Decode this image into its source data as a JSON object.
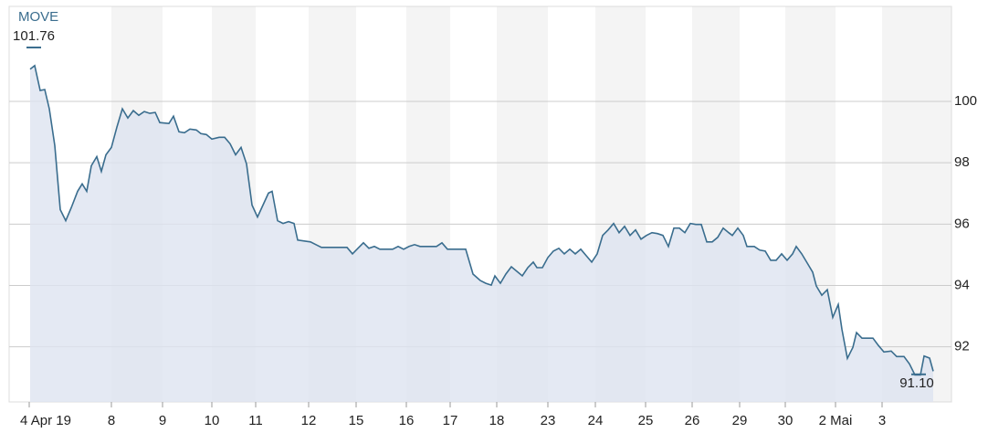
{
  "chart_data": {
    "type": "area",
    "title": "MOVE",
    "x": [
      0.1,
      0.6,
      1.2,
      1.7,
      2.2,
      2.8,
      3.4,
      4.0,
      4.6,
      5.3,
      5.8,
      6.3,
      6.8,
      7.4,
      7.9,
      8.4,
      9.0,
      9.6,
      10.2,
      10.8,
      11.4,
      12.0,
      12.6,
      13.2,
      13.8,
      14.3,
      15.3,
      15.8,
      16.4,
      17.0,
      17.6,
      18.3,
      18.8,
      19.4,
      20.0,
      20.8,
      21.4,
      22.0,
      22.6,
      23.2,
      23.8,
      24.4,
      25.0,
      25.6,
      26.2,
      26.6,
      27.2,
      27.8,
      28.4,
      29.0,
      29.4,
      30.8,
      31.4,
      32.0,
      34.8,
      35.4,
      36.0,
      36.6,
      37.2,
      37.8,
      38.4,
      39.8,
      40.4,
      41.0,
      41.6,
      42.2,
      42.8,
      44.6,
      45.2,
      45.8,
      47.8,
      48.6,
      49.4,
      50.0,
      50.6,
      51.0,
      51.6,
      52.2,
      52.8,
      53.4,
      54.0,
      54.6,
      55.2,
      55.6,
      56.2,
      56.8,
      57.4,
      58.0,
      58.6,
      59.2,
      59.8,
      60.4,
      61.0,
      61.6,
      62.2,
      62.8,
      63.4,
      64.0,
      64.6,
      65.2,
      65.8,
      66.4,
      67.0,
      67.6,
      68.2,
      68.8,
      69.4,
      70.0,
      70.6,
      71.2,
      71.8,
      72.4,
      73.0,
      73.6,
      74.2,
      74.8,
      75.4,
      76.0,
      76.6,
      77.0,
      77.6,
      78.2,
      78.6,
      79.4,
      80.0,
      80.6,
      81.2,
      81.8,
      82.4,
      83.0,
      83.6,
      84.0,
      84.6,
      85.2,
      85.8,
      86.2,
      86.8,
      87.4,
      88.0,
      88.6,
      89.0,
      89.6,
      90.2,
      90.6,
      91.2,
      91.8,
      92.4,
      93.0,
      93.6,
      94.4,
      95.0,
      95.8,
      96.4,
      97.0,
      97.6,
      98.0,
      98.6,
      99.0
    ],
    "values": [
      101.05,
      101.17,
      100.36,
      100.39,
      99.76,
      98.56,
      96.47,
      96.11,
      96.53,
      97.07,
      97.31,
      97.07,
      97.9,
      98.2,
      97.72,
      98.26,
      98.5,
      99.16,
      99.76,
      99.46,
      99.7,
      99.55,
      99.67,
      99.61,
      99.64,
      99.31,
      99.28,
      99.52,
      99.01,
      98.98,
      99.1,
      99.07,
      98.95,
      98.92,
      98.77,
      98.83,
      98.83,
      98.62,
      98.26,
      98.5,
      97.96,
      96.62,
      96.23,
      96.62,
      97.01,
      97.07,
      96.11,
      96.02,
      96.08,
      96.02,
      95.48,
      95.42,
      95.33,
      95.24,
      95.24,
      95.03,
      95.21,
      95.39,
      95.21,
      95.27,
      95.18,
      95.18,
      95.27,
      95.18,
      95.27,
      95.33,
      95.27,
      95.27,
      95.39,
      95.18,
      95.18,
      94.37,
      94.16,
      94.07,
      94.01,
      94.31,
      94.07,
      94.37,
      94.61,
      94.46,
      94.31,
      94.58,
      94.76,
      94.58,
      94.58,
      94.91,
      95.12,
      95.21,
      95.03,
      95.18,
      95.03,
      95.18,
      94.97,
      94.76,
      95.03,
      95.63,
      95.81,
      96.02,
      95.72,
      95.93,
      95.63,
      95.81,
      95.51,
      95.63,
      95.72,
      95.69,
      95.63,
      95.27,
      95.87,
      95.87,
      95.72,
      96.02,
      95.99,
      95.99,
      95.42,
      95.42,
      95.57,
      95.87,
      95.72,
      95.63,
      95.87,
      95.63,
      95.27,
      95.27,
      95.15,
      95.12,
      94.82,
      94.82,
      95.03,
      94.82,
      95.03,
      95.27,
      95.03,
      94.73,
      94.43,
      93.98,
      93.68,
      93.86,
      92.96,
      93.38,
      92.57,
      91.62,
      91.98,
      92.46,
      92.28,
      92.28,
      92.28,
      92.04,
      91.83,
      91.86,
      91.68,
      91.68,
      91.44,
      91.08,
      91.08,
      91.7,
      91.63,
      91.2
    ],
    "color": "#3a6d8e",
    "xlim": [
      -2.2,
      101
    ],
    "xticks": [
      {
        "value": 0,
        "label": "4 Apr 19"
      },
      {
        "value": 9,
        "label": "8"
      },
      {
        "value": 14.6,
        "label": "9"
      },
      {
        "value": 20,
        "label": "10"
      },
      {
        "value": 24.8,
        "label": "11"
      },
      {
        "value": 30.6,
        "label": "12"
      },
      {
        "value": 35.8,
        "label": "15"
      },
      {
        "value": 41.3,
        "label": "16"
      },
      {
        "value": 46.1,
        "label": "17"
      },
      {
        "value": 51.2,
        "label": "18"
      },
      {
        "value": 56.8,
        "label": "23"
      },
      {
        "value": 62,
        "label": "24"
      },
      {
        "value": 67.5,
        "label": "25"
      },
      {
        "value": 72.6,
        "label": "26"
      },
      {
        "value": 77.8,
        "label": "29"
      },
      {
        "value": 82.8,
        "label": "30"
      },
      {
        "value": 88.3,
        "label": "2 Mai"
      },
      {
        "value": 93.4,
        "label": "3"
      }
    ],
    "ylim": [
      90.2,
      103.1
    ],
    "yticks": [
      92,
      94,
      96,
      98,
      100
    ],
    "grid": true,
    "max_label": 101.76,
    "min_label": {
      "value": 91.1,
      "label": "91.10"
    }
  }
}
